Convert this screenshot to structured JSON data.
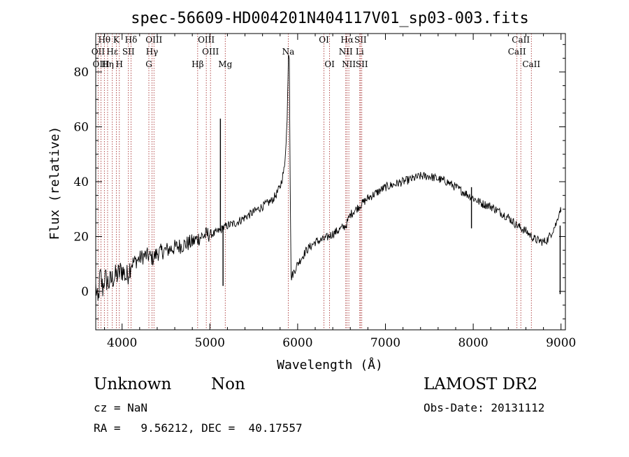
{
  "chart_data": {
    "type": "line",
    "title": "spec-56609-HD004201N404117V01_sp03-003.fits",
    "xlabel": "Wavelength (Å)",
    "ylabel": "Flux (relative)",
    "xlim": [
      3700,
      9050
    ],
    "ylim": [
      -14,
      94
    ],
    "x_ticks": [
      4000,
      5000,
      6000,
      7000,
      8000,
      9000
    ],
    "y_ticks": [
      0,
      20,
      40,
      60,
      80
    ],
    "grid": false,
    "series": [
      {
        "points": [
          [
            3700,
            2
          ],
          [
            3725,
            -5
          ],
          [
            3750,
            6
          ],
          [
            3780,
            1
          ],
          [
            3800,
            5
          ],
          [
            3850,
            3
          ],
          [
            3900,
            5
          ],
          [
            3950,
            6
          ],
          [
            4000,
            8
          ],
          [
            4050,
            5
          ],
          [
            4100,
            10
          ],
          [
            4150,
            11
          ],
          [
            4200,
            12
          ],
          [
            4250,
            13
          ],
          [
            4300,
            13
          ],
          [
            4350,
            12
          ],
          [
            4400,
            14
          ],
          [
            4500,
            15
          ],
          [
            4600,
            16
          ],
          [
            4700,
            17
          ],
          [
            4800,
            18
          ],
          [
            4900,
            20
          ],
          [
            5000,
            21
          ],
          [
            5050,
            21
          ],
          [
            5100,
            22
          ],
          [
            5200,
            24
          ],
          [
            5300,
            25
          ],
          [
            5400,
            27
          ],
          [
            5500,
            29
          ],
          [
            5600,
            31
          ],
          [
            5700,
            33
          ],
          [
            5750,
            35
          ],
          [
            5800,
            38
          ],
          [
            5850,
            45
          ],
          [
            5880,
            62
          ],
          [
            5895,
            87
          ],
          [
            5905,
            86
          ],
          [
            5915,
            40
          ],
          [
            5925,
            5
          ],
          [
            5940,
            6
          ],
          [
            6000,
            10
          ],
          [
            6100,
            15
          ],
          [
            6200,
            18
          ],
          [
            6300,
            19
          ],
          [
            6400,
            21
          ],
          [
            6500,
            23
          ],
          [
            6550,
            24
          ],
          [
            6600,
            28
          ],
          [
            6700,
            31
          ],
          [
            6800,
            34
          ],
          [
            6900,
            36
          ],
          [
            7000,
            38
          ],
          [
            7100,
            39
          ],
          [
            7200,
            40
          ],
          [
            7300,
            41
          ],
          [
            7400,
            42
          ],
          [
            7500,
            42
          ],
          [
            7600,
            41
          ],
          [
            7700,
            40
          ],
          [
            7800,
            38
          ],
          [
            7900,
            36
          ],
          [
            8000,
            34
          ],
          [
            8100,
            32
          ],
          [
            8200,
            31
          ],
          [
            8300,
            29
          ],
          [
            8400,
            27
          ],
          [
            8500,
            24
          ],
          [
            8600,
            22
          ],
          [
            8700,
            19
          ],
          [
            8800,
            18
          ],
          [
            8850,
            19
          ],
          [
            8900,
            22
          ],
          [
            8950,
            25
          ],
          [
            8970,
            28
          ],
          [
            8990,
            30
          ],
          [
            9000,
            29
          ]
        ],
        "spikes": [
          {
            "x": 5120,
            "y": 63
          },
          {
            "x": 5150,
            "y": 2
          },
          {
            "x": 7980,
            "y": 23
          },
          {
            "x": 8990,
            "y": -1
          }
        ]
      }
    ],
    "lines": [
      {
        "label": "Hθ",
        "x": 3798,
        "row": 1
      },
      {
        "label": "OII",
        "x": 3727,
        "row": 2
      },
      {
        "label": "OIII",
        "x": 3760,
        "row": 3
      },
      {
        "label": "Hε",
        "x": 3889,
        "row": 2
      },
      {
        "label": "K",
        "x": 3934,
        "row": 1
      },
      {
        "label": "Hη",
        "x": 3835,
        "row": 3
      },
      {
        "label": "H",
        "x": 3969,
        "row": 3
      },
      {
        "label": "Hδ",
        "x": 4102,
        "row": 1
      },
      {
        "label": "SII",
        "x": 4072,
        "row": 2
      },
      {
        "label": "OIII",
        "x": 4363,
        "row": 1
      },
      {
        "label": "Hγ",
        "x": 4341,
        "row": 2
      },
      {
        "label": "G",
        "x": 4305,
        "row": 3
      },
      {
        "label": "OIII",
        "x": 4959,
        "row": 1
      },
      {
        "label": "OIII",
        "x": 5007,
        "row": 2
      },
      {
        "label": "Hβ",
        "x": 4861,
        "row": 3
      },
      {
        "label": "Mg",
        "x": 5175,
        "row": 3
      },
      {
        "label": "Na",
        "x": 5893,
        "row": 2
      },
      {
        "label": "OI",
        "x": 6300,
        "row": 1
      },
      {
        "label": "OI",
        "x": 6364,
        "row": 3
      },
      {
        "label": "Hα",
        "x": 6563,
        "row": 1
      },
      {
        "label": "NII",
        "x": 6548,
        "row": 2
      },
      {
        "label": "NII",
        "x": 6583,
        "row": 3
      },
      {
        "label": "SII",
        "x": 6716,
        "row": 1
      },
      {
        "label": "Li",
        "x": 6708,
        "row": 2
      },
      {
        "label": "SII",
        "x": 6731,
        "row": 3
      },
      {
        "label": "CaII",
        "x": 8542,
        "row": 1
      },
      {
        "label": "CaII",
        "x": 8498,
        "row": 2
      },
      {
        "label": "CaII",
        "x": 8662,
        "row": 3
      }
    ]
  },
  "info": {
    "class": "Unknown",
    "subclass": "Non",
    "survey": "LAMOST DR2",
    "cz": "cz = NaN",
    "obs_date": "Obs-Date: 20131112",
    "radec": "RA =   9.56212, DEC =  40.17557"
  }
}
